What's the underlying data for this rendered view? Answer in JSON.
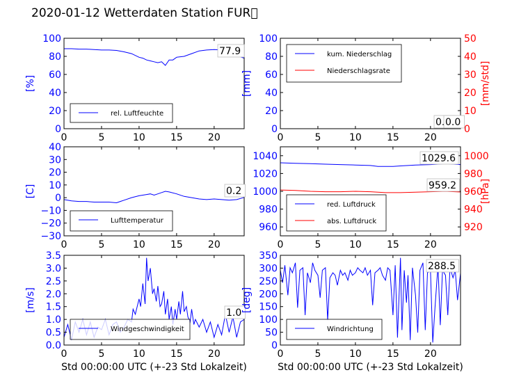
{
  "title": "2020-01-12 Wetterdaten Station FUR\u0000",
  "colors": {
    "primary": "#0000ff",
    "secondary": "#ff0000",
    "axis": "#000000"
  },
  "chart_data": [
    {
      "type": "line",
      "ylabel": "[%]",
      "xlim": [
        0,
        24
      ],
      "ylim": [
        0,
        100
      ],
      "xticks": [
        "0",
        "5",
        "10",
        "15",
        "20"
      ],
      "yticks": [
        "0",
        "20",
        "40",
        "60",
        "80",
        "100"
      ],
      "grid": false,
      "legend_position": "lower-left",
      "current_value_label": "77.9",
      "series": [
        {
          "name": "rel. Luftfeuchte",
          "color": "#0000ff",
          "x": [
            0,
            1,
            2,
            3,
            4,
            5,
            6,
            7,
            8,
            9,
            10,
            10.5,
            11,
            11.5,
            12,
            12.5,
            13,
            13.5,
            14,
            14.5,
            15,
            16,
            17,
            18,
            19,
            20,
            21,
            22,
            23,
            24
          ],
          "y": [
            88.5,
            88.5,
            88,
            88,
            87.5,
            87,
            87,
            86.5,
            85,
            83,
            79,
            78,
            76,
            75,
            74,
            73,
            74,
            70,
            76,
            76,
            79,
            80,
            83,
            86,
            87,
            87.5,
            87,
            86,
            81,
            78
          ]
        }
      ]
    },
    {
      "type": "line",
      "ylabel": "[mm]",
      "y2label": "[mm/std]",
      "xlim": [
        0,
        24
      ],
      "ylim": [
        0,
        100
      ],
      "y2lim": [
        0,
        50
      ],
      "xticks": [
        "0",
        "5",
        "10",
        "15",
        "20"
      ],
      "yticks": [
        "0",
        "20",
        "40",
        "60",
        "80",
        "100"
      ],
      "y2ticks": [
        "0",
        "10",
        "20",
        "30",
        "40",
        "50"
      ],
      "grid": false,
      "legend_position": "upper-left",
      "current_value_labels": [
        "0.0",
        "0.0"
      ],
      "series": [
        {
          "name": "kum. Niederschlag",
          "color": "#0000ff",
          "x": [
            0,
            24
          ],
          "y": [
            0,
            0
          ]
        },
        {
          "name": "Niederschlagsrate",
          "color": "#ff0000",
          "axis": "right",
          "x": [
            0,
            24
          ],
          "y": [
            0,
            0
          ]
        }
      ]
    },
    {
      "type": "line",
      "ylabel": "[C]",
      "xlim": [
        0,
        24
      ],
      "ylim": [
        -30,
        40
      ],
      "xticks": [
        "0",
        "5",
        "10",
        "15",
        "20"
      ],
      "yticks": [
        "−30",
        "−20",
        "−10",
        "0",
        "10",
        "20",
        "30",
        "40"
      ],
      "grid": false,
      "legend_position": "lower-left",
      "current_value_label": "0.2",
      "series": [
        {
          "name": "Lufttemperatur",
          "color": "#0000ff",
          "x": [
            0,
            1,
            2,
            3,
            4,
            5,
            6,
            7,
            7.5,
            8,
            9,
            10,
            11,
            11.5,
            12,
            12.5,
            13,
            13.5,
            14,
            15,
            16,
            17,
            18,
            19,
            20,
            21,
            22,
            23,
            24
          ],
          "y": [
            -1.5,
            -2.5,
            -3,
            -3,
            -3.5,
            -3.5,
            -3.5,
            -4,
            -3,
            -2,
            0,
            1.5,
            2.5,
            3,
            2,
            3,
            4,
            5,
            4.5,
            3,
            1,
            0,
            -1,
            -1.5,
            -1,
            -1.5,
            -2,
            -1.5,
            0.2
          ]
        }
      ]
    },
    {
      "type": "line",
      "ylabel": "",
      "y2label": "[hPa]",
      "xlim": [
        0,
        24
      ],
      "ylim": [
        950,
        1050
      ],
      "y2lim": [
        910,
        1010
      ],
      "xticks": [
        "0",
        "5",
        "10",
        "15",
        "20"
      ],
      "yticks": [
        "960",
        "980",
        "1000",
        "1020",
        "1040"
      ],
      "y2ticks": [
        "920",
        "940",
        "960",
        "980",
        "1000"
      ],
      "grid": false,
      "legend_position": "lower-left",
      "current_value_labels": [
        "1029.6",
        "959.2"
      ],
      "series": [
        {
          "name": "red. Luftdruck",
          "color": "#0000ff",
          "x": [
            0,
            2,
            4,
            6,
            8,
            10,
            12,
            13,
            14,
            15,
            16,
            18,
            20,
            22,
            24
          ],
          "y": [
            1032,
            1031.5,
            1031,
            1030.5,
            1030,
            1029.5,
            1029,
            1028,
            1028,
            1028,
            1028.5,
            1029.5,
            1030,
            1031,
            1030
          ]
        },
        {
          "name": "abs. Luftdruck",
          "color": "#ff0000",
          "axis": "right",
          "x": [
            0,
            2,
            4,
            6,
            8,
            10,
            12,
            14,
            16,
            18,
            20,
            22,
            24
          ],
          "y": [
            961.5,
            961,
            960,
            959.5,
            959.5,
            960,
            959.5,
            958.5,
            958.5,
            959,
            959.5,
            960,
            959.2
          ]
        }
      ]
    },
    {
      "type": "line",
      "ylabel": "[m/s]",
      "xlabel": "Std 00:00:00 UTC (+-23 Std Lokalzeit)",
      "xlim": [
        0,
        24
      ],
      "ylim": [
        0,
        3.5
      ],
      "xticks": [
        "0",
        "5",
        "10",
        "15",
        "20"
      ],
      "yticks": [
        "0.0",
        "0.5",
        "1.0",
        "1.5",
        "2.0",
        "2.5",
        "3.0",
        "3.5"
      ],
      "grid": false,
      "legend_position": "lower-left",
      "current_value_label": "1.0",
      "series": [
        {
          "name": "Windgeschwindigkeit",
          "color": "#0000ff",
          "x": [
            0,
            0.5,
            1,
            1.5,
            2,
            2.5,
            3,
            3.5,
            4,
            4.5,
            5,
            5.5,
            6,
            6.5,
            7,
            7.5,
            8,
            8.5,
            9,
            9.2,
            9.5,
            10,
            10.2,
            10.5,
            10.8,
            11,
            11.2,
            11.5,
            11.8,
            12,
            12.3,
            12.5,
            12.8,
            13,
            13.3,
            13.5,
            13.8,
            14,
            14.3,
            14.5,
            14.8,
            15,
            15.3,
            15.5,
            15.8,
            16,
            16.3,
            16.5,
            16.8,
            17,
            17.3,
            17.5,
            18,
            18.5,
            19,
            19.5,
            20,
            20.5,
            21,
            21.5,
            22,
            22.5,
            23,
            23.5,
            24
          ],
          "y": [
            0.3,
            0.8,
            0.2,
            0.9,
            0.5,
            1.0,
            0.4,
            0.9,
            0.3,
            0.7,
            0.6,
            1.0,
            0.4,
            0.8,
            0.9,
            0.5,
            0.7,
            1.0,
            0.9,
            1.4,
            1.2,
            1.8,
            1.5,
            2.4,
            1.6,
            3.4,
            2.5,
            3.0,
            2.0,
            2.2,
            1.7,
            2.3,
            1.5,
            1.6,
            2.1,
            1.2,
            1.8,
            1.0,
            1.5,
            0.8,
            1.4,
            1.0,
            1.7,
            1.2,
            2.1,
            1.3,
            1.5,
            1.1,
            0.9,
            1.4,
            0.8,
            1.0,
            0.7,
            1.0,
            0.5,
            0.9,
            0.3,
            0.8,
            0.4,
            1.2,
            0.5,
            1.1,
            0.3,
            0.9,
            1.0
          ]
        }
      ]
    },
    {
      "type": "line",
      "ylabel": "[deg]",
      "xlabel": "Std 00:00:00 UTC (+-23 Std Lokalzeit)",
      "xlim": [
        0,
        24
      ],
      "ylim": [
        0,
        360
      ],
      "xticks": [
        "0",
        "5",
        "10",
        "15",
        "20"
      ],
      "yticks": [
        "0",
        "50",
        "100",
        "150",
        "200",
        "250",
        "300",
        "350"
      ],
      "grid": false,
      "legend_position": "lower-left",
      "current_value_label": "288.5",
      "series": [
        {
          "name": "Windrichtung",
          "color": "#0000ff",
          "x": [
            0,
            0.3,
            0.6,
            1,
            1.3,
            1.6,
            2,
            2.3,
            2.6,
            3,
            3.3,
            3.6,
            4,
            4.3,
            4.6,
            5,
            5.3,
            5.6,
            6,
            6.3,
            6.6,
            7,
            7.3,
            7.6,
            8,
            8.3,
            8.6,
            9,
            9.3,
            9.6,
            10,
            10.3,
            10.6,
            11,
            11.3,
            11.6,
            12,
            12.3,
            12.6,
            13,
            13.3,
            13.6,
            14,
            14.3,
            14.6,
            15,
            15.3,
            15.6,
            16,
            16.2,
            16.5,
            16.8,
            17,
            17.3,
            17.6,
            18,
            18.3,
            18.6,
            19,
            19.3,
            19.6,
            20,
            20.3,
            20.6,
            21,
            21.3,
            21.6,
            22,
            22.3,
            22.6,
            23,
            23.3,
            23.6,
            24
          ],
          "y": [
            300,
            250,
            320,
            200,
            310,
            290,
            330,
            150,
            300,
            310,
            120,
            290,
            250,
            330,
            300,
            280,
            190,
            300,
            310,
            100,
            270,
            290,
            280,
            240,
            300,
            280,
            290,
            260,
            300,
            280,
            290,
            310,
            300,
            290,
            310,
            280,
            300,
            160,
            290,
            300,
            310,
            280,
            260,
            310,
            300,
            120,
            320,
            30,
            350,
            60,
            300,
            170,
            280,
            20,
            310,
            200,
            50,
            300,
            330,
            60,
            290,
            300,
            10,
            150,
            320,
            80,
            300,
            280,
            120,
            310,
            270,
            300,
            180,
            288
          ]
        }
      ]
    }
  ]
}
